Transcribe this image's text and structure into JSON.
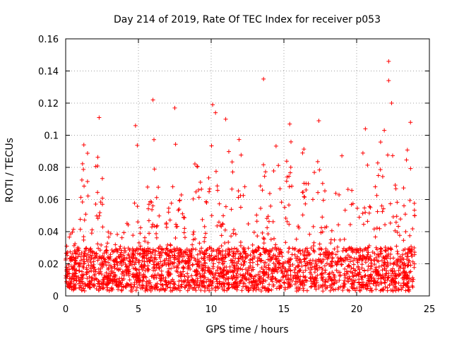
{
  "chart_data": {
    "type": "scatter",
    "title": "Day 214 of 2019, Rate Of TEC Index for receiver p053",
    "xlabel": "GPS time / hours",
    "ylabel": "ROTI / TECUs",
    "xlim": [
      0,
      25
    ],
    "ylim": [
      0,
      0.16
    ],
    "xticks": [
      0,
      5,
      10,
      15,
      20,
      25
    ],
    "xtick_labels": [
      "0",
      "5",
      "10",
      "15",
      "20",
      "25"
    ],
    "yticks": [
      0,
      0.02,
      0.04,
      0.06,
      0.08,
      0.1,
      0.12,
      0.14,
      0.16
    ],
    "ytick_labels": [
      "0",
      "0.02",
      "0.04",
      "0.06",
      "0.08",
      "0.1",
      "0.12",
      "0.14",
      "0.16"
    ],
    "grid": true,
    "marker": "+",
    "color": "#ff0000",
    "series": [
      {
        "name": "ROTI",
        "x_range": [
          0,
          24
        ],
        "bulk_range": [
          0.003,
          0.03
        ],
        "outliers": [
          {
            "x": 13.6,
            "y": 0.135
          },
          {
            "x": 22.2,
            "y": 0.146
          },
          {
            "x": 22.2,
            "y": 0.134
          },
          {
            "x": 22.4,
            "y": 0.12
          },
          {
            "x": 6.0,
            "y": 0.122
          },
          {
            "x": 10.1,
            "y": 0.119
          },
          {
            "x": 7.5,
            "y": 0.117
          },
          {
            "x": 10.3,
            "y": 0.114
          },
          {
            "x": 2.3,
            "y": 0.111
          },
          {
            "x": 4.8,
            "y": 0.106
          },
          {
            "x": 11.0,
            "y": 0.11
          },
          {
            "x": 17.4,
            "y": 0.109
          },
          {
            "x": 15.4,
            "y": 0.107
          },
          {
            "x": 23.7,
            "y": 0.108
          },
          {
            "x": 20.6,
            "y": 0.104
          },
          {
            "x": 21.9,
            "y": 0.103
          }
        ]
      }
    ]
  }
}
